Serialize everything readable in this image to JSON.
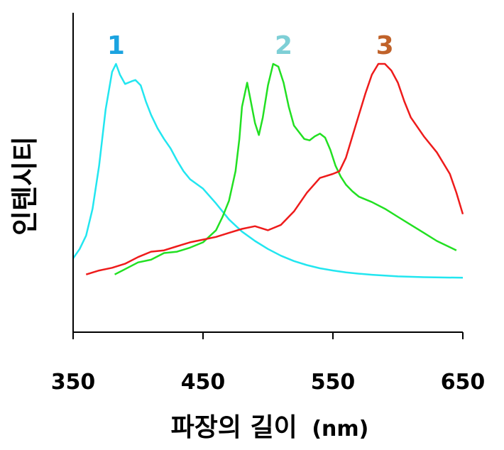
{
  "chart_data": {
    "type": "line",
    "title": "",
    "xlabel": "파장의 길이",
    "xlabel_unit": "(nm)",
    "ylabel": "인텐시티",
    "xlim": [
      350,
      650
    ],
    "ylim": [
      0,
      1
    ],
    "xticks": [
      "350",
      "450",
      "550",
      "650"
    ],
    "grid": false,
    "series": [
      {
        "name": "1",
        "color": "#22e6f0",
        "label_color": "#1ba3e0",
        "label_at": [
          383,
          1.0
        ],
        "points": [
          [
            350,
            0.275
          ],
          [
            355,
            0.31
          ],
          [
            360,
            0.36
          ],
          [
            365,
            0.46
          ],
          [
            370,
            0.62
          ],
          [
            375,
            0.83
          ],
          [
            380,
            0.97
          ],
          [
            383,
            1.0
          ],
          [
            386,
            0.96
          ],
          [
            390,
            0.925
          ],
          [
            395,
            0.935
          ],
          [
            398,
            0.94
          ],
          [
            402,
            0.92
          ],
          [
            406,
            0.86
          ],
          [
            410,
            0.81
          ],
          [
            415,
            0.76
          ],
          [
            420,
            0.72
          ],
          [
            425,
            0.685
          ],
          [
            430,
            0.64
          ],
          [
            435,
            0.6
          ],
          [
            440,
            0.57
          ],
          [
            450,
            0.535
          ],
          [
            460,
            0.48
          ],
          [
            470,
            0.42
          ],
          [
            480,
            0.375
          ],
          [
            490,
            0.34
          ],
          [
            500,
            0.31
          ],
          [
            510,
            0.285
          ],
          [
            520,
            0.265
          ],
          [
            530,
            0.25
          ],
          [
            540,
            0.238
          ],
          [
            550,
            0.23
          ],
          [
            560,
            0.223
          ],
          [
            570,
            0.218
          ],
          [
            580,
            0.214
          ],
          [
            590,
            0.211
          ],
          [
            600,
            0.208
          ],
          [
            620,
            0.205
          ],
          [
            650,
            0.203
          ]
        ]
      },
      {
        "name": "2",
        "color": "#22e022",
        "label_color": "#7ecfd6",
        "label_at": [
          512,
          1.0
        ],
        "points": [
          [
            382,
            0.215
          ],
          [
            390,
            0.235
          ],
          [
            400,
            0.26
          ],
          [
            410,
            0.27
          ],
          [
            420,
            0.295
          ],
          [
            430,
            0.3
          ],
          [
            440,
            0.315
          ],
          [
            450,
            0.335
          ],
          [
            460,
            0.38
          ],
          [
            465,
            0.43
          ],
          [
            470,
            0.49
          ],
          [
            475,
            0.6
          ],
          [
            478,
            0.72
          ],
          [
            480,
            0.84
          ],
          [
            484,
            0.93
          ],
          [
            486,
            0.88
          ],
          [
            490,
            0.78
          ],
          [
            493,
            0.735
          ],
          [
            496,
            0.8
          ],
          [
            500,
            0.92
          ],
          [
            504,
            1.0
          ],
          [
            508,
            0.99
          ],
          [
            512,
            0.93
          ],
          [
            516,
            0.84
          ],
          [
            520,
            0.77
          ],
          [
            524,
            0.745
          ],
          [
            528,
            0.72
          ],
          [
            532,
            0.715
          ],
          [
            536,
            0.73
          ],
          [
            540,
            0.74
          ],
          [
            544,
            0.725
          ],
          [
            548,
            0.68
          ],
          [
            552,
            0.62
          ],
          [
            556,
            0.58
          ],
          [
            560,
            0.55
          ],
          [
            565,
            0.525
          ],
          [
            570,
            0.505
          ],
          [
            580,
            0.485
          ],
          [
            590,
            0.46
          ],
          [
            600,
            0.43
          ],
          [
            610,
            0.4
          ],
          [
            620,
            0.37
          ],
          [
            630,
            0.34
          ],
          [
            645,
            0.305
          ]
        ]
      },
      {
        "name": "3",
        "color": "#ee1b1b",
        "label_color": "#c0622a",
        "label_at": [
          590,
          1.0
        ],
        "points": [
          [
            360,
            0.215
          ],
          [
            370,
            0.23
          ],
          [
            380,
            0.24
          ],
          [
            390,
            0.255
          ],
          [
            400,
            0.28
          ],
          [
            410,
            0.3
          ],
          [
            420,
            0.305
          ],
          [
            430,
            0.32
          ],
          [
            440,
            0.335
          ],
          [
            450,
            0.345
          ],
          [
            460,
            0.355
          ],
          [
            470,
            0.37
          ],
          [
            480,
            0.385
          ],
          [
            490,
            0.395
          ],
          [
            500,
            0.38
          ],
          [
            510,
            0.4
          ],
          [
            520,
            0.45
          ],
          [
            530,
            0.52
          ],
          [
            540,
            0.575
          ],
          [
            550,
            0.59
          ],
          [
            555,
            0.6
          ],
          [
            560,
            0.65
          ],
          [
            565,
            0.73
          ],
          [
            570,
            0.81
          ],
          [
            575,
            0.89
          ],
          [
            580,
            0.96
          ],
          [
            585,
            1.0
          ],
          [
            590,
            1.0
          ],
          [
            595,
            0.975
          ],
          [
            600,
            0.93
          ],
          [
            605,
            0.86
          ],
          [
            610,
            0.8
          ],
          [
            620,
            0.73
          ],
          [
            630,
            0.67
          ],
          [
            640,
            0.59
          ],
          [
            645,
            0.52
          ],
          [
            650,
            0.44
          ]
        ]
      }
    ]
  }
}
